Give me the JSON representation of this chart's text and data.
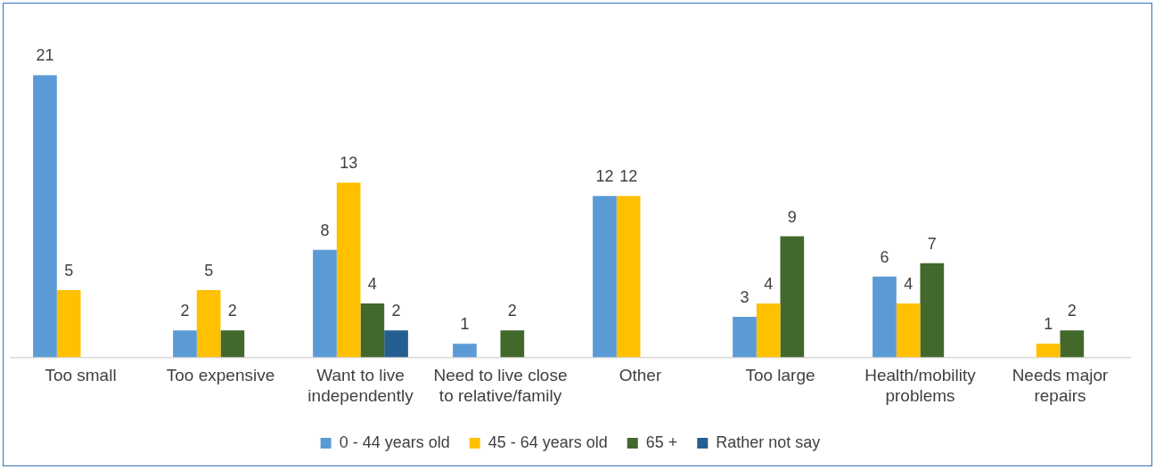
{
  "chart_data": {
    "type": "bar",
    "categories": [
      "Too small",
      "Too expensive",
      "Want to live independently",
      "Need to live close to relative/family",
      "Other",
      "Too large",
      "Health/mobility problems",
      "Needs major repairs"
    ],
    "series": [
      {
        "name": "0 - 44 years old",
        "color": "#5b9bd5",
        "values": [
          21,
          2,
          8,
          1,
          12,
          3,
          6,
          null
        ]
      },
      {
        "name": "45 - 64 years old",
        "color": "#ffc000",
        "values": [
          5,
          5,
          13,
          null,
          12,
          4,
          4,
          1
        ]
      },
      {
        "name": "65 +",
        "color": "#43682b",
        "values": [
          null,
          2,
          4,
          2,
          null,
          9,
          7,
          2
        ]
      },
      {
        "name": "Rather not say",
        "color": "#255e91",
        "values": [
          null,
          null,
          2,
          null,
          null,
          null,
          null,
          null
        ]
      }
    ],
    "data_labels": true,
    "legend": "bottom",
    "grid": false
  }
}
